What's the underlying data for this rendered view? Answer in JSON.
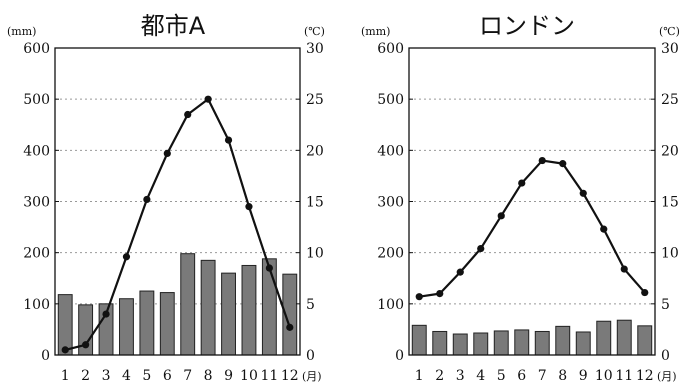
{
  "chart_data": [
    {
      "type": "bar+line",
      "title": "都市A",
      "left_unit": "(mm)",
      "right_unit": "(℃)",
      "x_unit": "(月)",
      "categories": [
        "1",
        "2",
        "3",
        "4",
        "5",
        "6",
        "7",
        "8",
        "9",
        "10",
        "11",
        "12"
      ],
      "precipitation": [
        118,
        98,
        100,
        110,
        125,
        122,
        198,
        185,
        160,
        175,
        188,
        158
      ],
      "temperature": [
        0.5,
        1.0,
        4.0,
        9.6,
        15.2,
        19.7,
        23.5,
        25.0,
        21.0,
        14.5,
        8.5,
        2.7
      ],
      "ylim_left": [
        0,
        600
      ],
      "ylim_right": [
        0,
        30
      ],
      "left_ticks": [
        "0",
        "100",
        "200",
        "300",
        "400",
        "500",
        "600"
      ],
      "right_ticks": [
        "0",
        "5",
        "10",
        "15",
        "20",
        "25",
        "30"
      ],
      "gridlines": true
    },
    {
      "type": "bar+line",
      "title": "ロンドン",
      "left_unit": "(mm)",
      "right_unit": "(℃)",
      "x_unit": "(月)",
      "categories": [
        "1",
        "2",
        "3",
        "4",
        "5",
        "6",
        "7",
        "8",
        "9",
        "10",
        "11",
        "12"
      ],
      "precipitation": [
        58,
        46,
        41,
        43,
        47,
        49,
        46,
        56,
        45,
        66,
        68,
        57
      ],
      "temperature": [
        5.7,
        6.0,
        8.1,
        10.4,
        13.6,
        16.8,
        19.0,
        18.7,
        15.8,
        12.3,
        8.4,
        6.1
      ],
      "ylim_left": [
        0,
        600
      ],
      "ylim_right": [
        0,
        30
      ],
      "left_ticks": [
        "0",
        "100",
        "200",
        "300",
        "400",
        "500",
        "600"
      ],
      "right_ticks": [
        "0",
        "5",
        "10",
        "15",
        "20",
        "25",
        "30"
      ],
      "gridlines": true
    }
  ]
}
